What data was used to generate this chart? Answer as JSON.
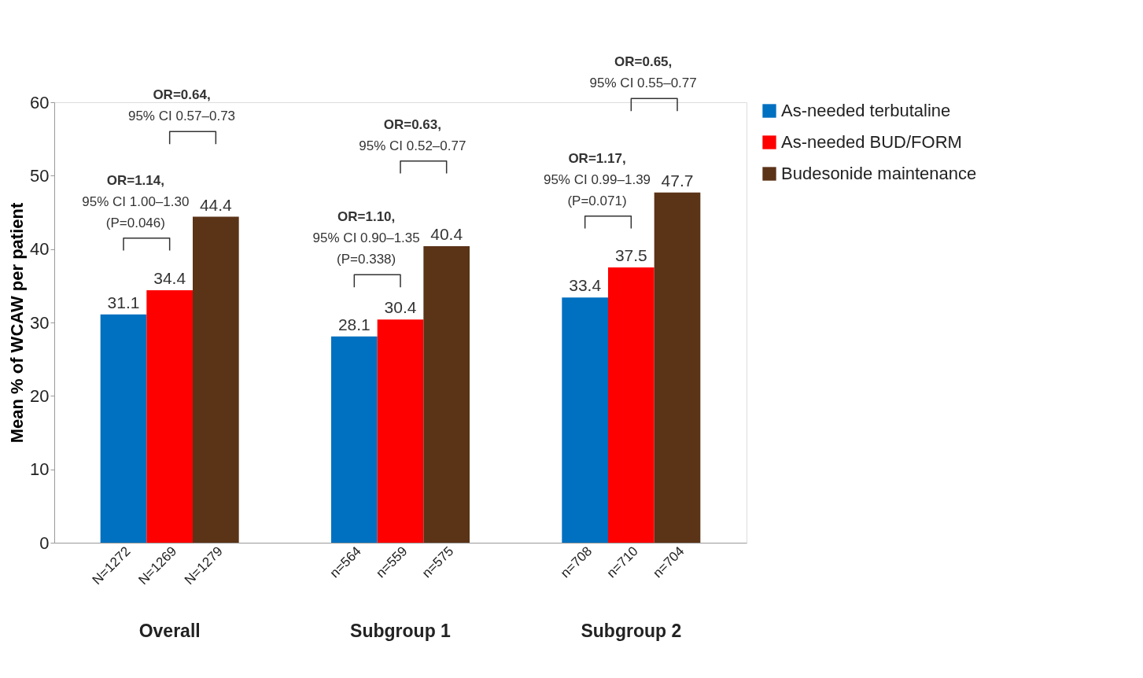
{
  "chart_data": {
    "type": "bar",
    "ylabel": "Mean % of WCAW per patient",
    "categories": [
      "N=1272",
      "N=1269",
      "N=1279",
      "n=564",
      "n=559",
      "n=575",
      "n=708",
      "n=710",
      "n=704"
    ],
    "series": [
      {
        "name": "As-needed terbutaline",
        "color": "#0070c0",
        "values": [
          31.1,
          null,
          null,
          28.1,
          null,
          null,
          33.4,
          null,
          null
        ]
      },
      {
        "name": "As-needed BUD/FORM",
        "color": "#ff0000",
        "values": [
          null,
          34.4,
          null,
          null,
          30.4,
          null,
          null,
          37.5,
          null
        ]
      },
      {
        "name": "Budesonide maintenance",
        "color": "#5b3317",
        "values": [
          null,
          null,
          44.4,
          null,
          null,
          40.4,
          null,
          null,
          47.7
        ]
      }
    ],
    "ylim": [
      0,
      60
    ],
    "yticks": [
      0,
      10,
      20,
      30,
      40,
      50,
      60
    ],
    "grid": false,
    "legend": "right",
    "data_labels": true,
    "annotations": [
      "OR=1.14,\n95% CI 1.00–1.30\n(P=0.046)",
      "OR=0.64,\n95% CI 0.57–0.73",
      "OR=1.10,\n95% CI 0.90–1.35\n(P=0.338)",
      "OR=0.63,\n95% CI 0.52–0.77",
      "OR=1.17,\n95% CI 0.99–1.39\n(P=0.071)",
      "OR=0.65,\n95% CI 0.55–0.77",
      "Overall",
      "Subgroup 1",
      "Subgroup 2"
    ]
  }
}
